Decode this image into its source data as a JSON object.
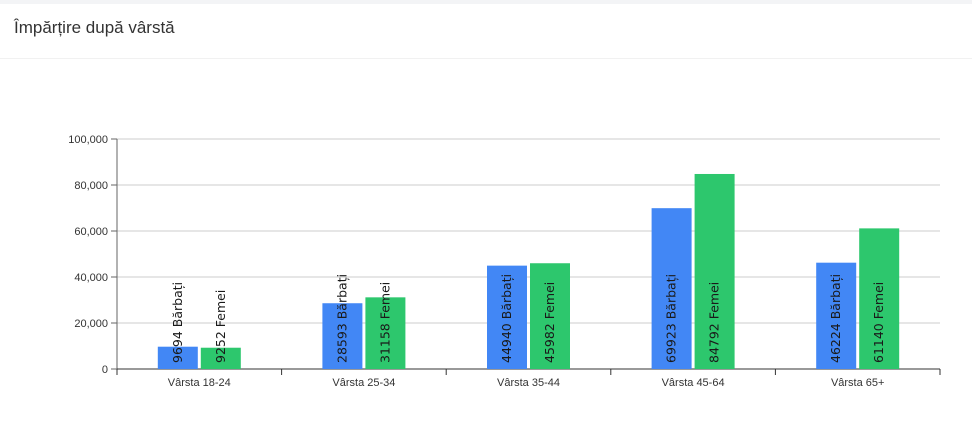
{
  "header": {
    "title": "Împărțire după vârstă"
  },
  "colors": {
    "men": "#4287f5",
    "women": "#2dc76d"
  },
  "chart_data": {
    "type": "bar",
    "title": "Împărțire după vârstă",
    "xlabel": "",
    "ylabel": "",
    "categories": [
      "Vârsta 18-24",
      "Vârsta 25-34",
      "Vârsta 35-44",
      "Vârsta 45-64",
      "Vârsta 65+"
    ],
    "series": [
      {
        "values": [
          9694,
          28593,
          44940,
          69923,
          46224
        ],
        "labels": [
          "9694 Bărbați",
          "28593 Bărbați",
          "44940 Bărbați",
          "69923 Bărbați",
          "46224 Bărbați"
        ]
      },
      {
        "values": [
          9252,
          31158,
          45982,
          84792,
          61140
        ],
        "labels": [
          "9252 Femei",
          "31158 Femei",
          "45982 Femei",
          "84792 Femei",
          "61140 Femei"
        ]
      }
    ],
    "ylim": [
      0,
      100000
    ],
    "yticks": [
      0,
      20000,
      40000,
      60000,
      80000,
      100000
    ],
    "ytick_labels": [
      "0",
      "20,000",
      "40,000",
      "60,000",
      "80,000",
      "100,000"
    ],
    "grid": true,
    "legend": "none"
  }
}
